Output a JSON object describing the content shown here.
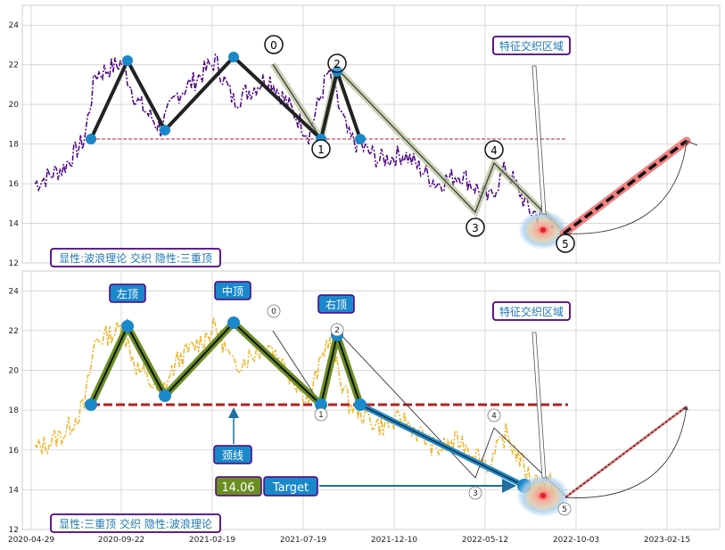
{
  "chart_data": [
    {
      "type": "line",
      "panel": "top",
      "ylim": [
        12,
        25
      ],
      "yticks": [
        12,
        14,
        16,
        18,
        20,
        22,
        24
      ],
      "grid": true,
      "series": [
        {
          "role": "price",
          "color": "#4b0082"
        },
        {
          "role": "wave-zigzag",
          "color": "#222222",
          "x": [
            "2020-07-23",
            "2020-09-22",
            "2020-11-23",
            "2021-02-19",
            "2021-07-19",
            "2021-08-19",
            "2021-09-22"
          ],
          "y": [
            18.2,
            22.1,
            18.6,
            22.3,
            18.1,
            21.6,
            18.1
          ]
        },
        {
          "role": "interweave-path",
          "color": "#9aaa70",
          "x": [
            "2021-05-18",
            "2021-07-19",
            "2021-08-19",
            "2022-05-05",
            "2022-06-01",
            "2022-08-10"
          ],
          "y": [
            21.9,
            18.0,
            21.8,
            14.4,
            17.0,
            13.8
          ]
        },
        {
          "role": "projection",
          "color": "#f08080",
          "x": [
            "2022-08-25",
            "2023-02-15"
          ],
          "y": [
            13.3,
            18.1
          ]
        }
      ],
      "neckline": {
        "y": 18.2,
        "x": [
          "2020-07-23",
          "2022-09-01"
        ],
        "color": "#b22234"
      },
      "wave_points": [
        {
          "label": "0",
          "x": "2021-05-12",
          "y": 22.9
        },
        {
          "label": "1",
          "x": "2021-07-19",
          "y": 17.6
        },
        {
          "label": "2",
          "x": "2021-08-19",
          "y": 21.9
        },
        {
          "label": "3",
          "x": "2022-05-05",
          "y": 13.7
        },
        {
          "label": "4",
          "x": "2022-06-01",
          "y": 17.6
        },
        {
          "label": "5",
          "x": "2022-08-25",
          "y": 12.9
        }
      ],
      "annotations": {
        "zone": "特征交织区域",
        "caption": "显性:波浪理论 交织 隐性:三重顶"
      }
    },
    {
      "type": "line",
      "panel": "bottom",
      "ylim": [
        12,
        25
      ],
      "yticks": [
        12,
        14,
        16,
        18,
        20,
        22,
        24
      ],
      "xticks": [
        "2020-04-29",
        "2020-09-22",
        "2021-02-19",
        "2021-07-19",
        "2021-12-10",
        "2022-05-12",
        "2022-10-03",
        "2023-02-15"
      ],
      "grid": true,
      "series": [
        {
          "role": "price",
          "color": "#f0b429"
        },
        {
          "role": "triple-top",
          "color": "#222222",
          "x": [
            "2020-07-23",
            "2020-09-22",
            "2020-11-23",
            "2021-02-19",
            "2021-07-19",
            "2021-08-19",
            "2021-09-22"
          ],
          "y": [
            18.2,
            22.1,
            18.6,
            22.3,
            18.1,
            21.6,
            18.1
          ]
        },
        {
          "role": "breakdown",
          "color": "#1f77b4",
          "x": [
            "2021-09-22",
            "2022-07-20"
          ],
          "y": [
            18.1,
            14.0
          ]
        }
      ],
      "neckline": {
        "y": 18.2,
        "x": [
          "2020-07-23",
          "2022-09-01"
        ],
        "color": "#b22222"
      },
      "tops": [
        {
          "label": "左顶",
          "x": "2020-09-22",
          "y": 22.1
        },
        {
          "label": "中顶",
          "x": "2021-02-19",
          "y": 22.3
        },
        {
          "label": "右顶",
          "x": "2021-08-19",
          "y": 21.6
        }
      ],
      "annotations": {
        "neck": "颈线",
        "target_value": "14.06",
        "target_label": "Target",
        "zone": "特征交织区域",
        "caption": "显性:三重顶 交织 隐性:波浪理论"
      }
    }
  ]
}
